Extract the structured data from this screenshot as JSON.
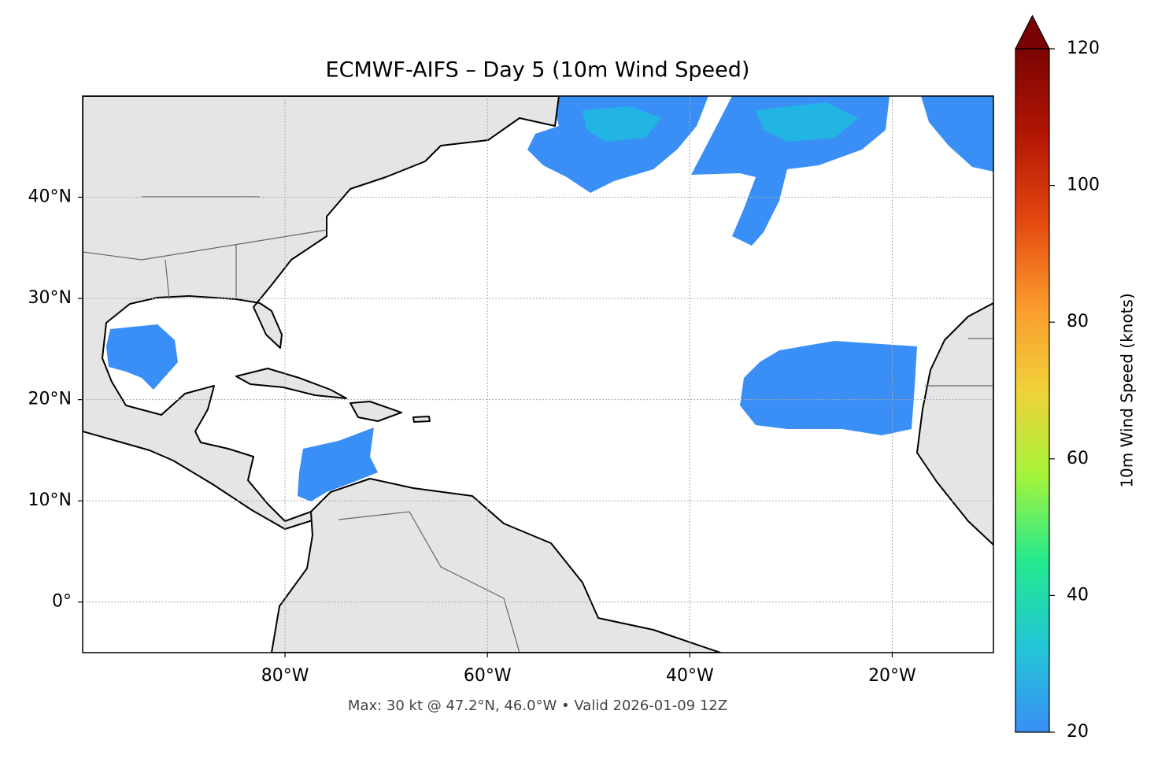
{
  "chart_data": {
    "type": "map",
    "title": "ECMWF-AIFS – Day 5 (10m Wind Speed)",
    "footnote": "Max: 30 kt @ 47.2°N, 46.0°W • Valid 2026-01-09 12Z",
    "xlim": [
      -100,
      -10
    ],
    "ylim": [
      -5,
      50
    ],
    "xticks": [
      {
        "value": -80,
        "label": "80°W"
      },
      {
        "value": -60,
        "label": "60°W"
      },
      {
        "value": -40,
        "label": "40°W"
      },
      {
        "value": -20,
        "label": "20°W"
      }
    ],
    "yticks": [
      {
        "value": 0,
        "label": "0°"
      },
      {
        "value": 10,
        "label": "10°N"
      },
      {
        "value": 20,
        "label": "20°N"
      },
      {
        "value": 30,
        "label": "30°N"
      },
      {
        "value": 40,
        "label": "40°N"
      }
    ],
    "grid": true,
    "colorbar": {
      "label": "10m Wind Speed (knots)",
      "clim": [
        20,
        120
      ],
      "ticks": [
        20,
        40,
        60,
        80,
        100,
        120
      ],
      "colormap": [
        "#3a8ff6",
        "#22c6d6",
        "#23e98e",
        "#a4f43a",
        "#f1d13a",
        "#fb9a2d",
        "#e3470f",
        "#b21604",
        "#7a0403"
      ]
    }
  }
}
